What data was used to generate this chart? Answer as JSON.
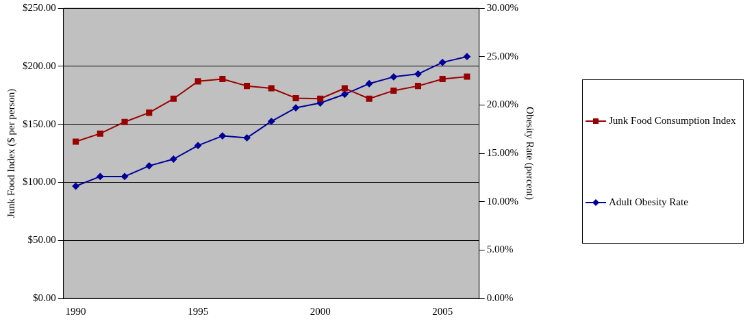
{
  "chart_data": {
    "type": "line",
    "xlabel": null,
    "ylabel": "Junk Food Index ($ per person)",
    "y2label": "Obesity Rate (percent)",
    "categories": [
      "1990",
      null,
      null,
      null,
      null,
      "1995",
      null,
      null,
      null,
      null,
      "2000",
      null,
      null,
      null,
      null,
      "2005",
      null
    ],
    "series": [
      {
        "name": "Junk Food Consumption Index",
        "color": "#990000",
        "marker": "square",
        "values": [
          135,
          142,
          152,
          160,
          172,
          187,
          189,
          183,
          181,
          172.5,
          172,
          181,
          172,
          179,
          183,
          189,
          191
        ]
      },
      {
        "name": "Adult Obesity Rate",
        "color": "#000099",
        "marker": "diamond",
        "axis": "y2",
        "values": [
          11.6,
          12.6,
          12.6,
          13.7,
          14.4,
          15.8,
          16.8,
          16.6,
          18.3,
          19.7,
          20.2,
          21.1,
          22.2,
          22.9,
          23.2,
          24.4,
          25.0
        ]
      }
    ],
    "ylim": [
      0,
      250
    ],
    "yticks": [
      {
        "value": 0,
        "label": "$0.00"
      },
      {
        "value": 50,
        "label": "$50.00"
      },
      {
        "value": 100,
        "label": "$100.00"
      },
      {
        "value": 150,
        "label": "$150.00"
      },
      {
        "value": 200,
        "label": "$200.00"
      },
      {
        "value": 250,
        "label": "$250.00"
      }
    ],
    "y2lim": [
      0,
      30
    ],
    "y2ticks": [
      {
        "value": 0,
        "label": "0.00%"
      },
      {
        "value": 5,
        "label": "5.00%"
      },
      {
        "value": 10,
        "label": "10.00%"
      },
      {
        "value": 15,
        "label": "15.00%"
      },
      {
        "value": 20,
        "label": "20.00%"
      },
      {
        "value": 25,
        "label": "25.00%"
      },
      {
        "value": 30,
        "label": "30.00%"
      }
    ],
    "grid": "y",
    "legend": "right"
  }
}
